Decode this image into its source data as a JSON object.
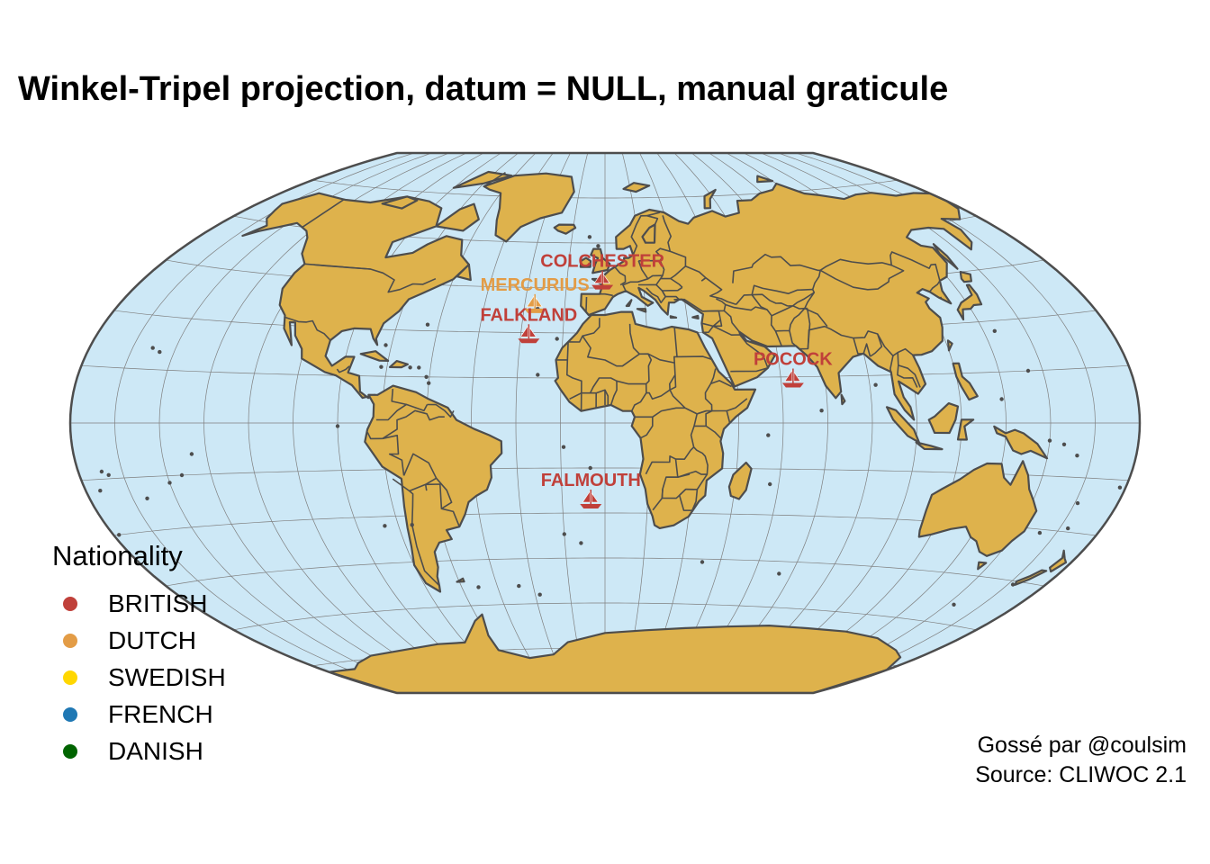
{
  "title": "Winkel-Tripel projection, datum = NULL, manual graticule",
  "colors": {
    "ocean": "#cde8f6",
    "land": "#deb24c",
    "border": "#4d4d4d",
    "graticule": "#7f7f7f"
  },
  "legend": {
    "title": "Nationality",
    "items": [
      {
        "label": "BRITISH",
        "color": "#c0403a"
      },
      {
        "label": "DUTCH",
        "color": "#e39c46"
      },
      {
        "label": "SWEDISH",
        "color": "#ffd700"
      },
      {
        "label": "FRENCH",
        "color": "#1f78b4"
      },
      {
        "label": "DANISH",
        "color": "#006400"
      }
    ]
  },
  "ships": [
    {
      "name": "COLCHESTER",
      "nationality": "BRITISH",
      "icon": "ship-icon"
    },
    {
      "name": "MERCURIUS",
      "nationality": "DUTCH",
      "icon": "ship-icon"
    },
    {
      "name": "FALKLAND",
      "nationality": "BRITISH",
      "icon": "ship-icon"
    },
    {
      "name": "POCOCK",
      "nationality": "BRITISH",
      "icon": "ship-icon"
    },
    {
      "name": "FALMOUTH",
      "nationality": "BRITISH",
      "icon": "ship-icon"
    }
  ],
  "caption": {
    "line1": "Gossé par @coulsim",
    "line2": "Source: CLIWOC 2.1"
  }
}
